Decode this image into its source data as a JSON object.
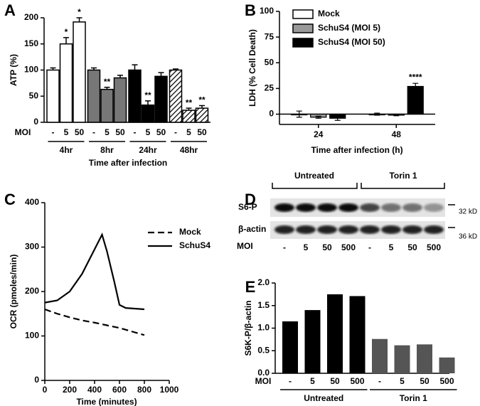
{
  "chart_data": [
    {
      "type": "bar",
      "panel": "A",
      "ylabel": "ATP (%)",
      "xlabel": "Time after infection",
      "moi_label": "MOI",
      "categories": [
        "-",
        "5",
        "50",
        "-",
        "5",
        "50",
        "-",
        "5",
        "50",
        "-",
        "5",
        "50"
      ],
      "groups": [
        "4hr",
        "8hr",
        "24hr",
        "48hr"
      ],
      "values": [
        100,
        150,
        192,
        100,
        63,
        85,
        100,
        33,
        88,
        100,
        23,
        27
      ],
      "errors": [
        4,
        12,
        8,
        4,
        4,
        5,
        10,
        8,
        7,
        2,
        4,
        5
      ],
      "colors": [
        "#ffffff",
        "#ffffff",
        "#ffffff",
        "#777777",
        "#777777",
        "#777777",
        "#000000",
        "#000000",
        "#000000",
        "#ffffff",
        "#ffffff",
        "#ffffff"
      ],
      "hatched": [
        false,
        false,
        false,
        false,
        false,
        false,
        false,
        false,
        false,
        true,
        true,
        true
      ],
      "annotations": [
        {
          "index": 1,
          "text": "*"
        },
        {
          "index": 2,
          "text": "*"
        },
        {
          "index": 4,
          "text": "**"
        },
        {
          "index": 7,
          "text": "**"
        },
        {
          "index": 10,
          "text": "**"
        },
        {
          "index": 11,
          "text": "**"
        }
      ],
      "ylim": [
        0,
        200
      ],
      "yticks": [
        0,
        50,
        100,
        150,
        200
      ]
    },
    {
      "type": "bar",
      "panel": "B",
      "ylabel": "LDH (% Cell Death)",
      "xlabel": "Time after infection (h)",
      "categories": [
        "24",
        "48"
      ],
      "series": [
        {
          "name": "Mock",
          "color": "#ffffff",
          "values": [
            0,
            0
          ],
          "errors": [
            3,
            1
          ]
        },
        {
          "name": "SchuS4 (MOI 5)",
          "color": "#999999",
          "values": [
            -3,
            -1
          ],
          "errors": [
            1,
            0.5
          ]
        },
        {
          "name": "SchuS4 (MOI 50)",
          "color": "#000000",
          "values": [
            -4,
            27
          ],
          "errors": [
            2,
            3
          ]
        }
      ],
      "annotations": [
        {
          "series": 2,
          "index": 1,
          "text": "****"
        }
      ],
      "ylim": [
        -10,
        100
      ],
      "yticks": [
        0,
        25,
        50,
        75,
        100
      ]
    },
    {
      "type": "line",
      "panel": "C",
      "ylabel": "OCR (pmoles/min)",
      "xlabel": "Time (minutes)",
      "series": [
        {
          "name": "Mock",
          "color": "#000000",
          "linestyle": "dashed",
          "x": [
            0,
            100,
            200,
            300,
            400,
            500,
            600,
            700,
            800
          ],
          "values": [
            160,
            150,
            142,
            135,
            130,
            124,
            118,
            110,
            102
          ]
        },
        {
          "name": "SchuS4",
          "color": "#000000",
          "linestyle": "solid",
          "x": [
            0,
            100,
            200,
            300,
            400,
            460,
            500,
            560,
            600,
            650,
            800
          ],
          "values": [
            175,
            180,
            200,
            240,
            295,
            328,
            290,
            220,
            170,
            163,
            160
          ]
        }
      ],
      "xlim": [
        0,
        1000
      ],
      "xticks": [
        0,
        200,
        400,
        600,
        800,
        1000
      ],
      "ylim": [
        0,
        400
      ],
      "yticks": [
        0,
        100,
        200,
        300,
        400
      ]
    },
    {
      "type": "bar",
      "panel": "E",
      "ylabel": "S6K-P/β-actin",
      "moi_label": "MOI",
      "categories": [
        "-",
        "5",
        "50",
        "500",
        "-",
        "5",
        "50",
        "500"
      ],
      "groups": [
        "Untreated",
        "Torin 1"
      ],
      "values": [
        1.15,
        1.4,
        1.75,
        1.71,
        0.76,
        0.62,
        0.64,
        0.35
      ],
      "colors": [
        "#000000",
        "#000000",
        "#000000",
        "#000000",
        "#555555",
        "#555555",
        "#555555",
        "#555555"
      ],
      "ylim": [
        0,
        2
      ],
      "yticks": [
        {
          "value": 0,
          "label": "0.0"
        },
        {
          "value": 0.5,
          "label": "0.5"
        },
        {
          "value": 1,
          "label": "1.0"
        },
        {
          "value": 1.5,
          "label": "1.5"
        },
        {
          "value": 2,
          "label": "2.0"
        }
      ]
    }
  ],
  "blot": {
    "panel": "D",
    "groups": [
      "Untreated",
      "Torin 1"
    ],
    "rows": [
      "S6-P",
      "β-actin"
    ],
    "sizes": [
      "32 kD",
      "36 kD"
    ],
    "moi_label": "MOI",
    "lanes": [
      "-",
      "5",
      "50",
      "500",
      "-",
      "5",
      "50",
      "500"
    ]
  }
}
